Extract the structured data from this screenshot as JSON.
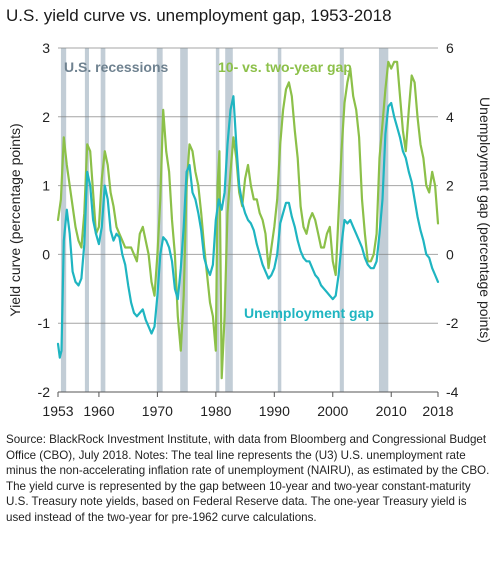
{
  "title": "U.S. yield curve vs. unemployment gap, 1953-2018",
  "source_text": "Source: BlackRock Investment Institute, with data from Bloomberg and Congressional Budget Office (CBO), July 2018. Notes: The teal line represents the (U3) U.S. unemployment rate minus the non-accelerating inflation rate of unemployment (NAIRU), as estimated by the CBO. The yield curve is represented by the gap between 10-year and two-year constant-maturity U.S. Treasury note yields, based on Federal Reserve data. The one-year Treasury yield is used instead of the two-year for pre-1962 curve calculations.",
  "colors": {
    "yield_curve": "#8cc049",
    "unemployment_gap": "#1fb5c1",
    "recession": "#b7c4cf",
    "grid": "#7f7f7f"
  },
  "chart_data": {
    "type": "line",
    "title": "U.S. yield curve vs. unemployment gap, 1953-2018",
    "ylabel": "Yield curve (percentage points)",
    "y2label": "Unemployment gap (percentage points)",
    "xlim": [
      1953,
      2018
    ],
    "ylim": [
      -2,
      3
    ],
    "y2lim": [
      -4,
      6
    ],
    "x_ticks": [
      "1953",
      "1960",
      "1970",
      "1980",
      "1990",
      "2000",
      "2010",
      "2018"
    ],
    "x_tick_values": [
      1953,
      1960,
      1970,
      1980,
      1990,
      2000,
      2010,
      2018
    ],
    "y_ticks": [
      "-2",
      "-1",
      "0",
      "1",
      "2",
      "3"
    ],
    "y_tick_values": [
      -2,
      -1,
      0,
      1,
      2,
      3
    ],
    "y2_ticks": [
      "-4",
      "-2",
      "0",
      "2",
      "4",
      "6"
    ],
    "y2_tick_values": [
      -4,
      -2,
      0,
      2,
      4,
      6
    ],
    "grid": "horizontal",
    "recessions_label": "U.S. recessions",
    "recessions": [
      [
        1953.5,
        1954.4
      ],
      [
        1957.6,
        1958.3
      ],
      [
        1960.3,
        1961.1
      ],
      [
        1969.9,
        1970.9
      ],
      [
        1973.9,
        1975.2
      ],
      [
        1980.0,
        1980.6
      ],
      [
        1981.6,
        1982.9
      ],
      [
        1990.6,
        1991.2
      ],
      [
        2001.2,
        2001.9
      ],
      [
        2007.9,
        2009.5
      ]
    ],
    "series": [
      {
        "name": "10- vs. two-year gap",
        "axis": "left",
        "color": "#8cc049",
        "x": [
          1953.0,
          1953.5,
          1954.0,
          1954.5,
          1955.0,
          1955.5,
          1956.0,
          1956.5,
          1957.0,
          1957.5,
          1958.0,
          1958.5,
          1959.0,
          1959.5,
          1960.0,
          1960.5,
          1961.0,
          1961.5,
          1962.0,
          1962.5,
          1963.0,
          1963.5,
          1964.0,
          1964.5,
          1965.0,
          1965.5,
          1966.0,
          1966.5,
          1967.0,
          1967.5,
          1968.0,
          1968.5,
          1969.0,
          1969.5,
          1970.0,
          1970.5,
          1971.0,
          1971.5,
          1972.0,
          1972.5,
          1973.0,
          1973.5,
          1974.0,
          1974.5,
          1975.0,
          1975.5,
          1976.0,
          1976.5,
          1977.0,
          1977.5,
          1978.0,
          1978.5,
          1979.0,
          1979.5,
          1980.0,
          1980.3,
          1980.6,
          1981.0,
          1981.5,
          1982.0,
          1982.5,
          1983.0,
          1983.5,
          1984.0,
          1984.5,
          1985.0,
          1985.5,
          1986.0,
          1986.5,
          1987.0,
          1987.5,
          1988.0,
          1988.5,
          1989.0,
          1989.5,
          1990.0,
          1990.5,
          1991.0,
          1991.5,
          1992.0,
          1992.5,
          1993.0,
          1993.5,
          1994.0,
          1994.5,
          1995.0,
          1995.5,
          1996.0,
          1996.5,
          1997.0,
          1997.5,
          1998.0,
          1998.5,
          1999.0,
          1999.5,
          2000.0,
          2000.5,
          2001.0,
          2001.5,
          2002.0,
          2002.5,
          2003.0,
          2003.5,
          2004.0,
          2004.5,
          2005.0,
          2005.5,
          2006.0,
          2006.5,
          2007.0,
          2007.5,
          2008.0,
          2008.5,
          2009.0,
          2009.5,
          2010.0,
          2010.5,
          2011.0,
          2011.5,
          2012.0,
          2012.5,
          2013.0,
          2013.5,
          2014.0,
          2014.5,
          2015.0,
          2015.5,
          2016.0,
          2016.5,
          2017.0,
          2017.5,
          2018.0
        ],
        "values": [
          0.5,
          0.8,
          1.7,
          1.3,
          1.0,
          0.7,
          0.4,
          0.2,
          0.1,
          0.6,
          1.6,
          1.5,
          0.9,
          0.3,
          0.4,
          1.1,
          1.5,
          1.3,
          0.9,
          0.7,
          0.4,
          0.3,
          0.2,
          0.1,
          0.1,
          0.1,
          0.0,
          -0.1,
          0.3,
          0.4,
          0.2,
          0.0,
          -0.4,
          -0.6,
          0.0,
          0.8,
          2.1,
          1.5,
          1.2,
          0.5,
          0.0,
          -0.9,
          -1.4,
          -0.6,
          1.0,
          1.6,
          1.5,
          1.2,
          1.0,
          0.6,
          0.1,
          -0.3,
          -0.7,
          -0.9,
          -1.4,
          1.0,
          1.5,
          -1.8,
          -0.9,
          0.6,
          1.2,
          1.7,
          1.4,
          0.9,
          0.7,
          1.1,
          1.3,
          1.0,
          0.8,
          0.8,
          0.6,
          0.5,
          0.3,
          -0.2,
          0.1,
          0.4,
          0.8,
          1.6,
          2.1,
          2.4,
          2.5,
          2.3,
          1.8,
          1.4,
          0.7,
          0.4,
          0.3,
          0.5,
          0.6,
          0.5,
          0.3,
          0.1,
          0.1,
          0.3,
          0.4,
          -0.1,
          -0.3,
          0.6,
          1.5,
          2.2,
          2.5,
          2.7,
          2.3,
          2.1,
          1.7,
          0.8,
          0.3,
          -0.1,
          -0.1,
          0.0,
          0.3,
          1.4,
          1.9,
          2.4,
          2.8,
          2.7,
          2.8,
          2.8,
          2.3,
          1.8,
          1.5,
          2.1,
          2.6,
          2.5,
          2.0,
          1.6,
          1.4,
          1.0,
          0.9,
          1.2,
          1.0,
          0.45
        ]
      },
      {
        "name": "Unemployment gap",
        "axis": "right",
        "color": "#1fb5c1",
        "x": [
          1953.0,
          1953.3,
          1953.6,
          1954.0,
          1954.5,
          1955.0,
          1955.5,
          1956.0,
          1956.5,
          1957.0,
          1957.5,
          1958.0,
          1958.5,
          1959.0,
          1959.5,
          1960.0,
          1960.5,
          1961.0,
          1961.5,
          1962.0,
          1962.5,
          1963.0,
          1963.5,
          1964.0,
          1964.5,
          1965.0,
          1965.5,
          1966.0,
          1966.5,
          1967.0,
          1967.5,
          1968.0,
          1968.5,
          1969.0,
          1969.5,
          1970.0,
          1970.5,
          1971.0,
          1971.5,
          1972.0,
          1972.5,
          1973.0,
          1973.5,
          1974.0,
          1974.5,
          1975.0,
          1975.5,
          1976.0,
          1976.5,
          1977.0,
          1977.5,
          1978.0,
          1978.5,
          1979.0,
          1979.5,
          1980.0,
          1980.5,
          1981.0,
          1981.5,
          1982.0,
          1982.5,
          1983.0,
          1983.5,
          1984.0,
          1984.5,
          1985.0,
          1985.5,
          1986.0,
          1986.5,
          1987.0,
          1987.5,
          1988.0,
          1988.5,
          1989.0,
          1989.5,
          1990.0,
          1990.5,
          1991.0,
          1991.5,
          1992.0,
          1992.5,
          1993.0,
          1993.5,
          1994.0,
          1994.5,
          1995.0,
          1995.5,
          1996.0,
          1996.5,
          1997.0,
          1997.5,
          1998.0,
          1998.5,
          1999.0,
          1999.5,
          2000.0,
          2000.5,
          2001.0,
          2001.5,
          2002.0,
          2002.5,
          2003.0,
          2003.5,
          2004.0,
          2004.5,
          2005.0,
          2005.5,
          2006.0,
          2006.5,
          2007.0,
          2007.5,
          2008.0,
          2008.5,
          2009.0,
          2009.5,
          2010.0,
          2010.5,
          2011.0,
          2011.5,
          2012.0,
          2012.5,
          2013.0,
          2013.5,
          2014.0,
          2014.5,
          2015.0,
          2015.5,
          2016.0,
          2016.5,
          2017.0,
          2017.5,
          2018.0
        ],
        "values": [
          -2.6,
          -3.0,
          -2.8,
          0.4,
          1.3,
          0.6,
          -0.5,
          -0.8,
          -0.9,
          -0.7,
          0.3,
          2.4,
          2.0,
          1.0,
          0.6,
          0.3,
          0.8,
          2.0,
          1.6,
          0.7,
          0.4,
          0.6,
          0.5,
          0.0,
          -0.3,
          -0.9,
          -1.4,
          -1.7,
          -1.8,
          -1.7,
          -1.6,
          -1.9,
          -2.1,
          -2.3,
          -2.1,
          -1.2,
          0.0,
          0.5,
          0.4,
          0.2,
          -0.2,
          -1.0,
          -1.3,
          -0.4,
          0.8,
          2.4,
          2.6,
          1.8,
          1.6,
          1.2,
          0.7,
          -0.1,
          -0.4,
          -0.6,
          -0.3,
          1.0,
          1.6,
          1.3,
          1.8,
          3.2,
          4.2,
          4.6,
          3.2,
          2.0,
          1.5,
          1.2,
          1.0,
          0.9,
          0.7,
          0.3,
          0.0,
          -0.3,
          -0.5,
          -0.7,
          -0.6,
          -0.4,
          0.0,
          0.9,
          1.2,
          1.5,
          1.5,
          1.1,
          0.8,
          0.4,
          0.1,
          -0.1,
          -0.2,
          -0.2,
          -0.4,
          -0.6,
          -0.7,
          -0.9,
          -1.0,
          -1.1,
          -1.2,
          -1.3,
          -1.2,
          -0.6,
          0.3,
          1.0,
          0.9,
          1.0,
          0.8,
          0.6,
          0.4,
          0.2,
          -0.1,
          -0.3,
          -0.4,
          -0.4,
          -0.2,
          0.6,
          1.6,
          3.5,
          4.3,
          4.4,
          4.0,
          3.7,
          3.4,
          3.0,
          2.8,
          2.4,
          2.1,
          1.6,
          1.1,
          0.7,
          0.4,
          0.0,
          -0.1,
          -0.4,
          -0.6,
          -0.8
        ]
      }
    ],
    "annotations": [
      {
        "text": "10- vs. two-year gap",
        "series": "10- vs. two-year gap"
      },
      {
        "text": "Unemployment gap",
        "series": "Unemployment gap"
      }
    ]
  }
}
